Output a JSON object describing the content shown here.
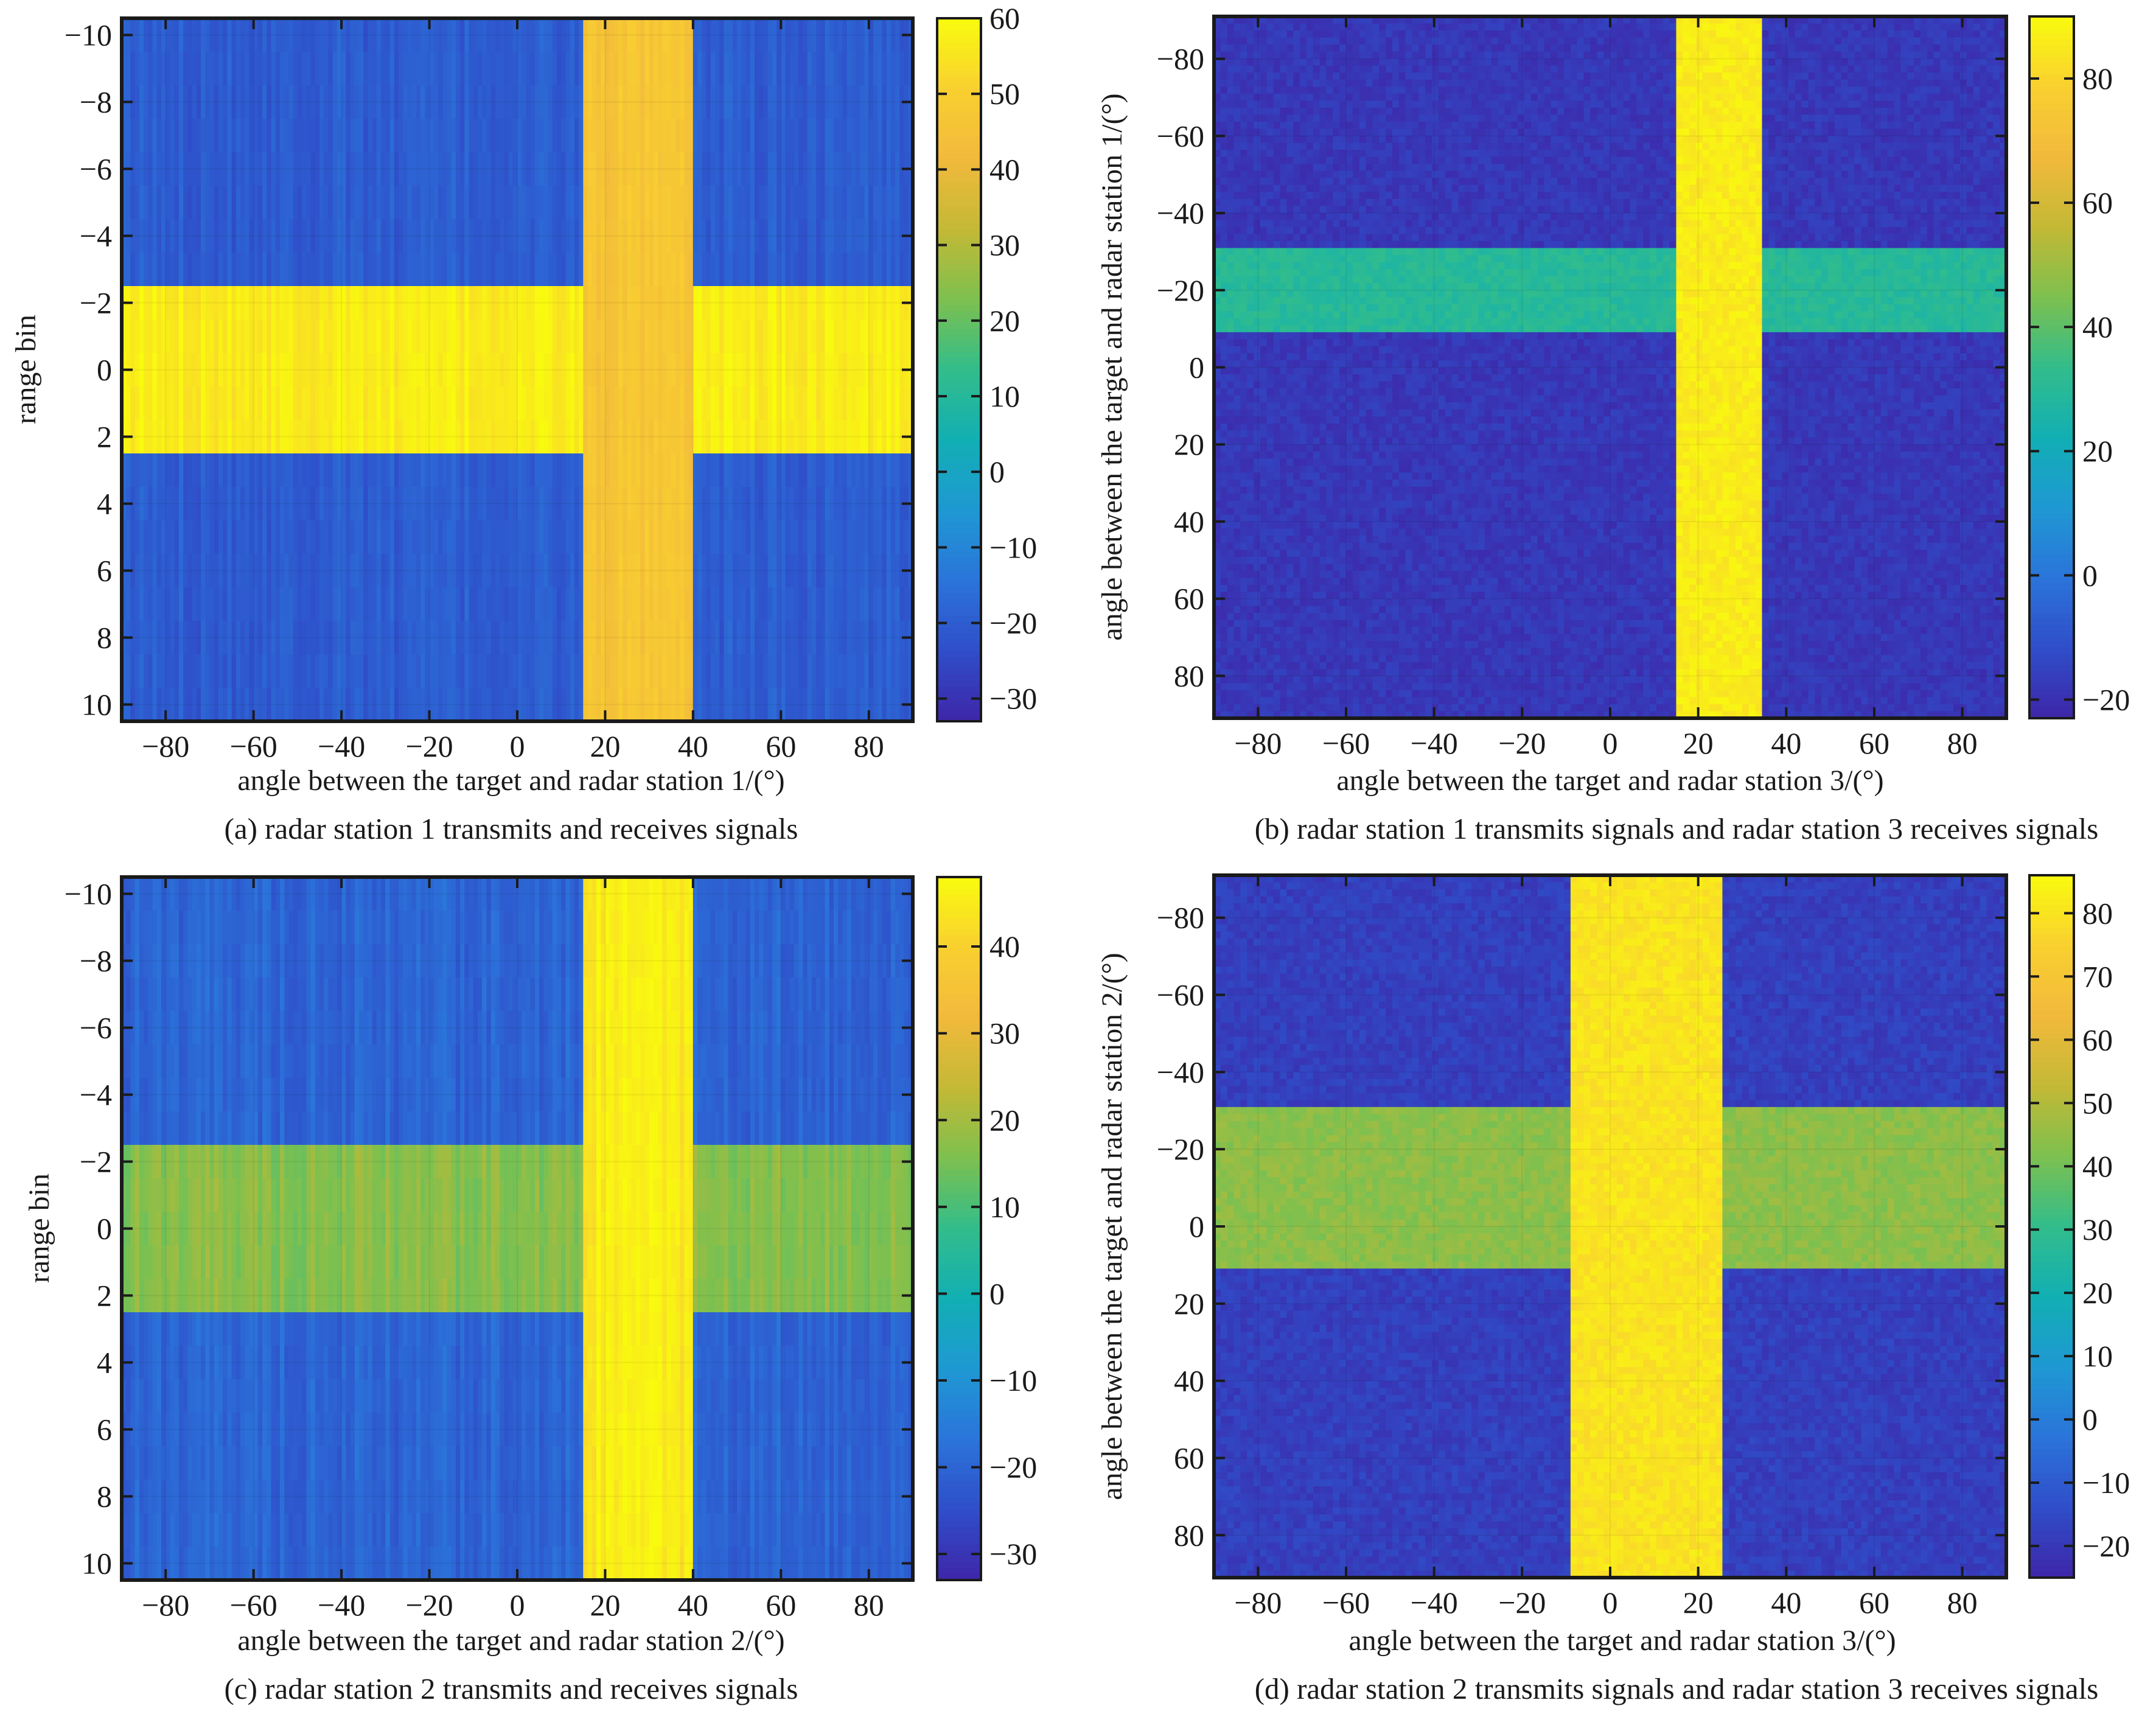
{
  "chart_data": [
    {
      "type": "heatmap",
      "caption": "(a) radar station 1 transmits and receives signals",
      "xlabel": "angle between the target and radar station 1/(°)",
      "ylabel": "range bin",
      "xlim": [
        -90,
        90
      ],
      "ylim": [
        -10.5,
        10.5
      ],
      "y_inverted": true,
      "xticks": [
        -80,
        -60,
        -40,
        -20,
        0,
        20,
        40,
        60,
        80
      ],
      "xtick_labels": [
        "−80",
        "−60",
        "−40",
        "−20",
        "0",
        "20",
        "40",
        "60",
        "80"
      ],
      "yticks": [
        -10,
        -8,
        -6,
        -4,
        -2,
        0,
        2,
        4,
        6,
        8,
        10
      ],
      "ytick_labels": [
        "−10",
        "−8",
        "−6",
        "−4",
        "−2",
        "0",
        "2",
        "4",
        "6",
        "8",
        "10"
      ],
      "colorbar": {
        "range": [
          -33,
          60
        ],
        "ticks": [
          60,
          50,
          40,
          30,
          20,
          10,
          0,
          -10,
          -20,
          -30
        ],
        "tick_labels": [
          "60",
          "50",
          "40",
          "30",
          "20",
          "10",
          "0",
          "−10",
          "−20",
          "−30"
        ]
      },
      "regions": [
        {
          "name": "background",
          "x": [
            -90,
            90
          ],
          "y": [
            -10.5,
            10.5
          ],
          "value": -20
        },
        {
          "name": "target-row",
          "x": [
            -90,
            90
          ],
          "y": [
            -2.5,
            2.5
          ],
          "value": 57
        },
        {
          "name": "target-column",
          "x": [
            15,
            40
          ],
          "y": [
            -10.5,
            10.5
          ],
          "value": 46
        }
      ],
      "noise": {
        "amplitude": 4,
        "pattern": "columns"
      }
    },
    {
      "type": "heatmap",
      "caption": "(b) radar station 1 transmits signals and radar station 3 receives signals",
      "xlabel": "angle between the target and radar station 3/(°)",
      "ylabel": "angle between the target and radar station 1/(°)",
      "xlim": [
        -90,
        90
      ],
      "ylim": [
        -91,
        91
      ],
      "y_inverted": true,
      "xticks": [
        -80,
        -60,
        -40,
        -20,
        0,
        20,
        40,
        60,
        80
      ],
      "xtick_labels": [
        "−80",
        "−60",
        "−40",
        "−20",
        "0",
        "20",
        "40",
        "60",
        "80"
      ],
      "yticks": [
        -80,
        -60,
        -40,
        -20,
        0,
        20,
        40,
        60,
        80
      ],
      "ytick_labels": [
        "−80",
        "−60",
        "−40",
        "−20",
        "0",
        "20",
        "40",
        "60",
        "80"
      ],
      "colorbar": {
        "range": [
          -23,
          90
        ],
        "ticks": [
          80,
          60,
          40,
          20,
          0,
          -20
        ],
        "tick_labels": [
          "80",
          "60",
          "40",
          "20",
          "0",
          "−20"
        ]
      },
      "regions": [
        {
          "name": "background",
          "x": [
            -90,
            90
          ],
          "y": [
            -91,
            91
          ],
          "value": -18
        },
        {
          "name": "target-row",
          "x": [
            -90,
            90
          ],
          "y": [
            -31,
            -10
          ],
          "value": 30
        },
        {
          "name": "target-column",
          "x": [
            15,
            35
          ],
          "y": [
            -91,
            91
          ],
          "value": 86
        }
      ],
      "noise": {
        "amplitude": 3,
        "pattern": "pixels"
      }
    },
    {
      "type": "heatmap",
      "caption": "(c) radar station 2 transmits and receives signals",
      "xlabel": "angle between the target and radar station 2/(°)",
      "ylabel": "range bin",
      "xlim": [
        -90,
        90
      ],
      "ylim": [
        -10.5,
        10.5
      ],
      "y_inverted": true,
      "xticks": [
        -80,
        -60,
        -40,
        -20,
        0,
        20,
        40,
        60,
        80
      ],
      "xtick_labels": [
        "−80",
        "−60",
        "−40",
        "−20",
        "0",
        "20",
        "40",
        "60",
        "80"
      ],
      "yticks": [
        -10,
        -8,
        -6,
        -4,
        -2,
        0,
        2,
        4,
        6,
        8,
        10
      ],
      "ytick_labels": [
        "−10",
        "−8",
        "−6",
        "−4",
        "−2",
        "0",
        "2",
        "4",
        "6",
        "8",
        "10"
      ],
      "colorbar": {
        "range": [
          -33,
          48
        ],
        "ticks": [
          40,
          30,
          20,
          10,
          0,
          -10,
          -20,
          -30
        ],
        "tick_labels": [
          "40",
          "30",
          "20",
          "10",
          "0",
          "−10",
          "−20",
          "−30"
        ]
      },
      "regions": [
        {
          "name": "background",
          "x": [
            -90,
            90
          ],
          "y": [
            -10.5,
            10.5
          ],
          "value": -20
        },
        {
          "name": "target-row",
          "x": [
            -90,
            90
          ],
          "y": [
            -2.5,
            2.5
          ],
          "value": 17
        },
        {
          "name": "target-column",
          "x": [
            15,
            40
          ],
          "y": [
            -10.5,
            10.5
          ],
          "value": 45
        }
      ],
      "noise": {
        "amplitude": 4,
        "pattern": "columns"
      }
    },
    {
      "type": "heatmap",
      "caption": "(d) radar station 2 transmits signals and radar station 3 receives signals",
      "xlabel": "angle between the target and radar station 3/(°)",
      "ylabel": "angle between the target and radar station 2/(°)",
      "xlim": [
        -90,
        90
      ],
      "ylim": [
        -91,
        91
      ],
      "y_inverted": true,
      "xticks": [
        -80,
        -60,
        -40,
        -20,
        0,
        20,
        40,
        60,
        80
      ],
      "xtick_labels": [
        "−80",
        "−60",
        "−40",
        "−20",
        "0",
        "20",
        "40",
        "60",
        "80"
      ],
      "yticks": [
        -80,
        -60,
        -40,
        -20,
        0,
        20,
        40,
        60,
        80
      ],
      "ytick_labels": [
        "−80",
        "−60",
        "−40",
        "−20",
        "0",
        "20",
        "40",
        "60",
        "80"
      ],
      "colorbar": {
        "range": [
          -25,
          86
        ],
        "ticks": [
          80,
          70,
          60,
          50,
          40,
          30,
          20,
          10,
          0,
          -10,
          -20
        ],
        "tick_labels": [
          "80",
          "70",
          "60",
          "50",
          "40",
          "30",
          "20",
          "10",
          "0",
          "−10",
          "−20"
        ]
      },
      "regions": [
        {
          "name": "background",
          "x": [
            -90,
            90
          ],
          "y": [
            -91,
            91
          ],
          "value": -18
        },
        {
          "name": "target-row",
          "x": [
            -90,
            90
          ],
          "y": [
            -31,
            11
          ],
          "value": 44
        },
        {
          "name": "target-column",
          "x": [
            -9,
            25
          ],
          "y": [
            -91,
            91
          ],
          "value": 80
        }
      ],
      "noise": {
        "amplitude": 3,
        "pattern": "pixels"
      }
    }
  ],
  "colors": {
    "colormap": [
      "#3e26a8",
      "#2f4ec9",
      "#2b74da",
      "#1e98d3",
      "#12afb4",
      "#32bd8b",
      "#7dc04f",
      "#c4b935",
      "#f2b93c",
      "#f9d030",
      "#f9fb0e"
    ],
    "axis": "#1a1a1a"
  }
}
